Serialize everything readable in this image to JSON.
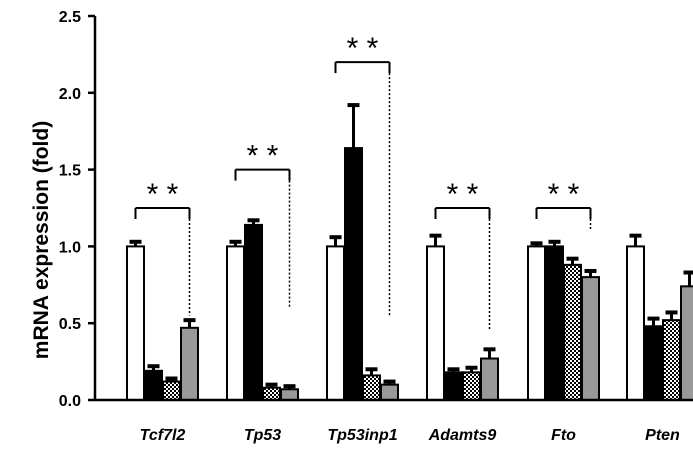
{
  "chart_data": {
    "type": "bar",
    "title": "",
    "xlabel": "",
    "ylabel": "mRNA expression (fold)",
    "ylim": [
      0,
      2.5
    ],
    "yticks": [
      "0.0",
      "0.5",
      "1.0",
      "1.5",
      "2.0",
      "2.5"
    ],
    "categories": [
      "Tcf7l2",
      "Tp53",
      "Tp53inp1",
      "Adamts9",
      "Fto",
      "Pten"
    ],
    "series_styles": [
      "white",
      "black",
      "checkered",
      "gray"
    ],
    "colors": {
      "white": "#ffffff",
      "black": "#000000",
      "checkered": "#000000",
      "gray": "#999999",
      "axis": "#000000"
    },
    "series": [
      {
        "values": [
          1.0,
          1.0,
          1.0,
          1.0,
          1.0,
          1.0
        ],
        "errors": [
          0.03,
          0.03,
          0.06,
          0.07,
          0.02,
          0.07
        ]
      },
      {
        "values": [
          0.19,
          1.14,
          1.64,
          0.18,
          1.0,
          0.48
        ],
        "errors": [
          0.03,
          0.03,
          0.28,
          0.02,
          0.03,
          0.05
        ]
      },
      {
        "values": [
          0.12,
          0.08,
          0.16,
          0.18,
          0.88,
          0.52
        ],
        "errors": [
          0.02,
          0.02,
          0.04,
          0.03,
          0.04,
          0.05
        ]
      },
      {
        "values": [
          0.47,
          0.07,
          0.1,
          0.27,
          0.8,
          0.74
        ],
        "errors": [
          0.05,
          0.02,
          0.02,
          0.06,
          0.04,
          0.09
        ]
      }
    ],
    "significance": [
      {
        "category": "Tcf7l2",
        "label": "* *",
        "bracket_y": 1.25,
        "end_y": 0.55
      },
      {
        "category": "Tp53",
        "label": "* *",
        "bracket_y": 1.5,
        "end_y": 0.6
      },
      {
        "category": "Tp53inp1",
        "label": "* *",
        "bracket_y": 2.2,
        "end_y": 0.55
      },
      {
        "category": "Adamts9",
        "label": "* *",
        "bracket_y": 1.25,
        "end_y": 0.45
      },
      {
        "category": "Fto",
        "label": "* *",
        "bracket_y": 1.25,
        "end_y": 1.1
      }
    ]
  }
}
